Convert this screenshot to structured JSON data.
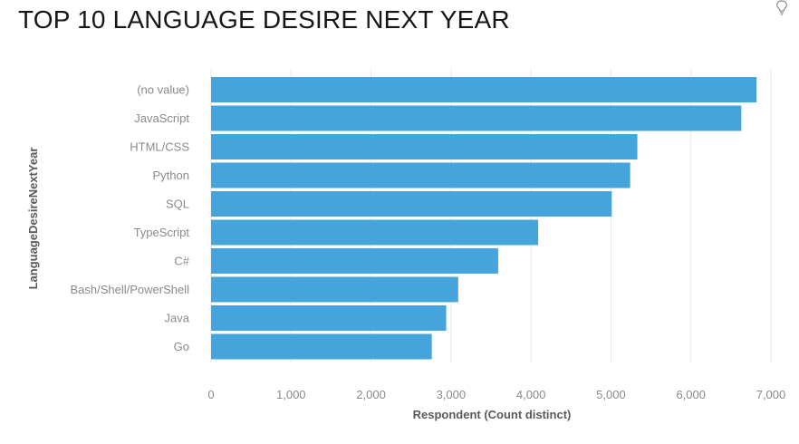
{
  "title": "TOP 10 LANGUAGE DESIRE NEXT YEAR",
  "icons": {
    "corner": "lightbulb-icon"
  },
  "colors": {
    "bar": "#45a4db",
    "grid": "#e6e6e6"
  },
  "chart_data": {
    "type": "bar",
    "orientation": "horizontal",
    "title": "TOP 10 LANGUAGE DESIRE NEXT YEAR",
    "xlabel": "Respondent (Count distinct)",
    "ylabel": "LanguageDesireNextYear",
    "categories": [
      "(no value)",
      "JavaScript",
      "HTML/CSS",
      "Python",
      "SQL",
      "TypeScript",
      "C#",
      "Bash/Shell/PowerShell",
      "Java",
      "Go"
    ],
    "values": [
      6820,
      6630,
      5330,
      5240,
      5010,
      4090,
      3590,
      3090,
      2940,
      2760
    ],
    "xlim": [
      0,
      7000
    ],
    "xticks": [
      0,
      1000,
      2000,
      3000,
      4000,
      5000,
      6000,
      7000
    ],
    "xtick_labels": [
      "0",
      "1,000",
      "2,000",
      "3,000",
      "4,000",
      "5,000",
      "6,000",
      "7,000"
    ],
    "grid": true
  }
}
